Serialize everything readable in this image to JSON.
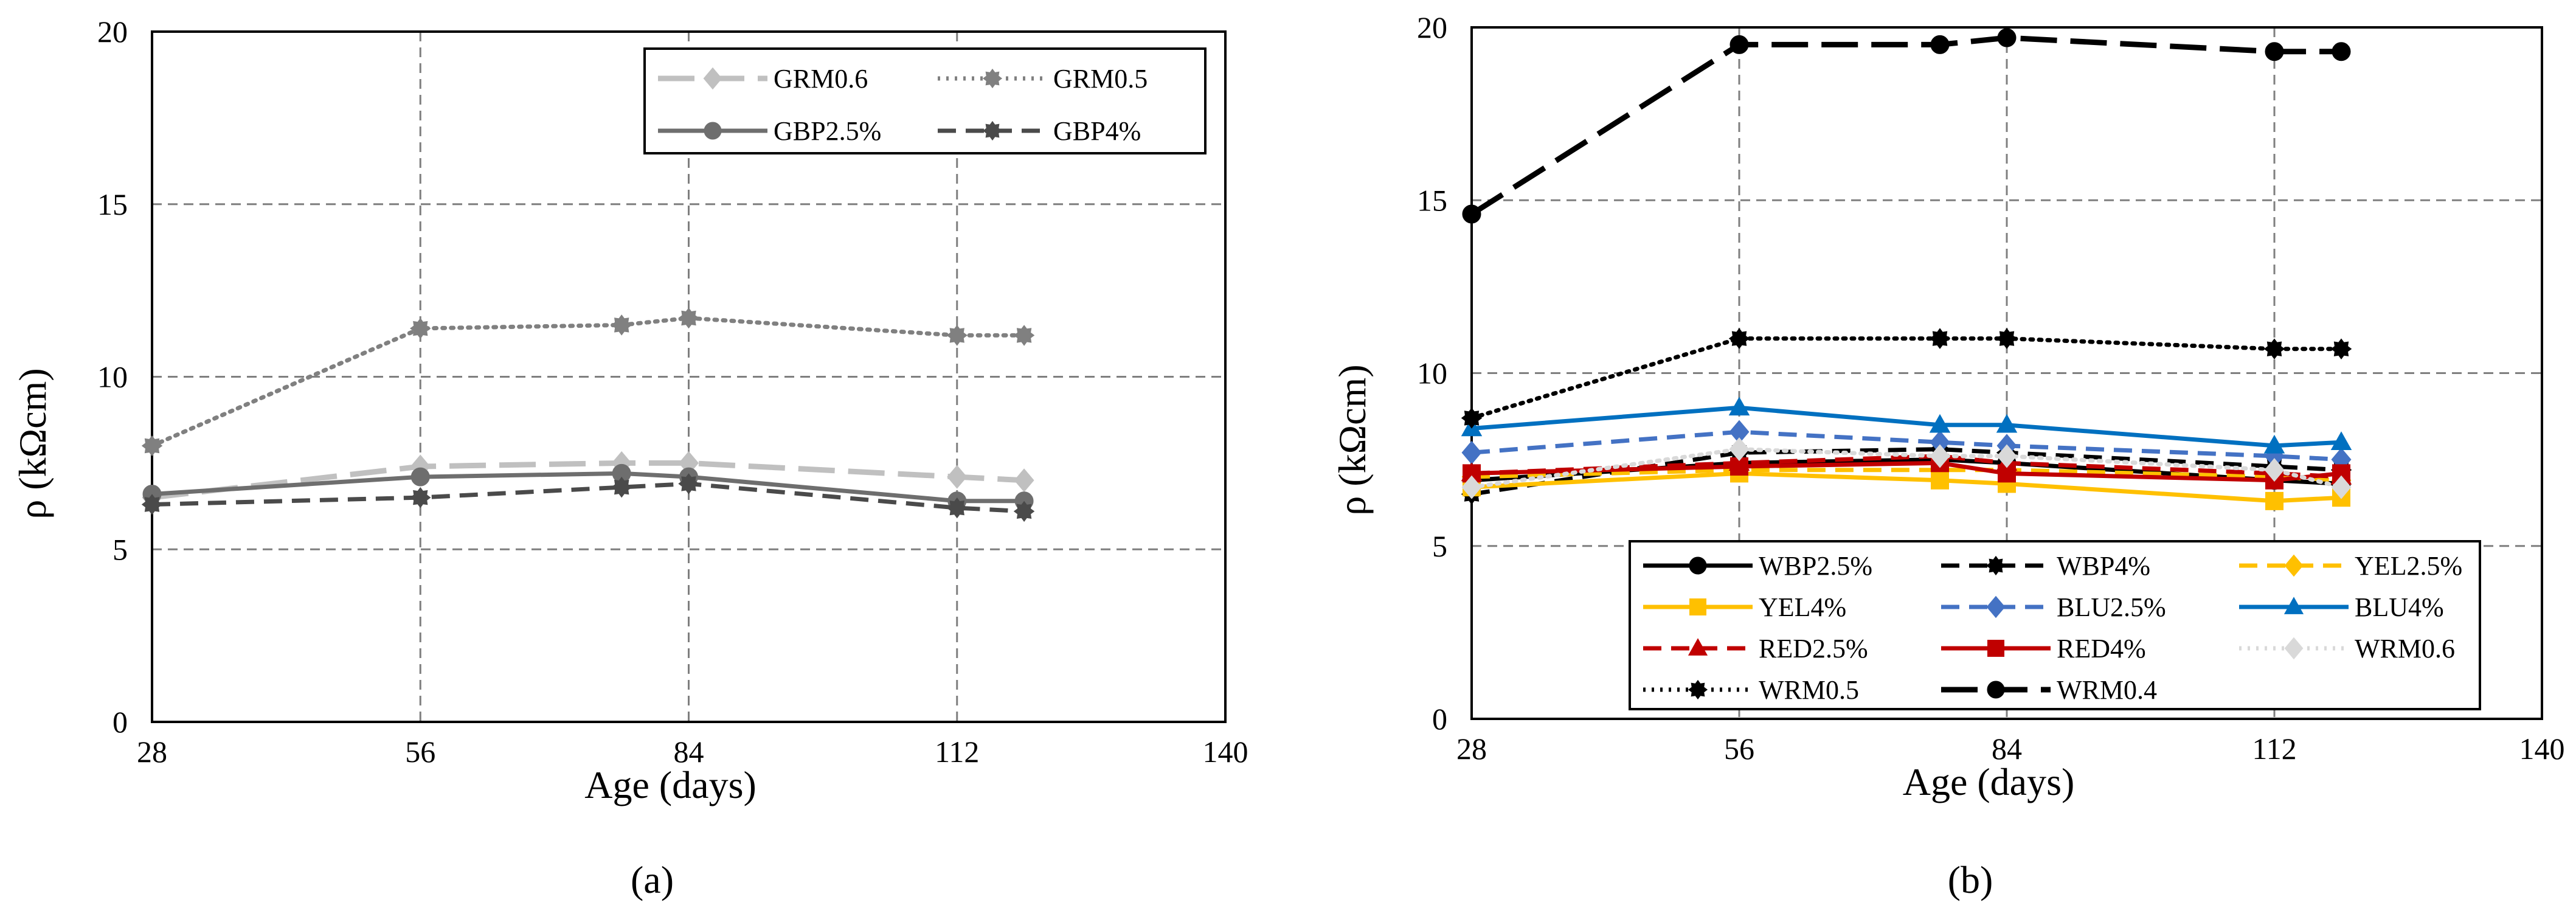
{
  "chart_data": [
    {
      "type": "line",
      "panel_label": "(a)",
      "title": "",
      "xlabel": "Age (days)",
      "ylabel": "ρ (kΩcm)",
      "xlim": [
        28,
        140
      ],
      "ylim": [
        0,
        20
      ],
      "xticks": [
        28,
        56,
        84,
        112,
        140
      ],
      "yticks": [
        0,
        5,
        10,
        15,
        20
      ],
      "grid": true,
      "legend_position": "top-right",
      "legend_columns": 2,
      "series": [
        {
          "name": "GRM0.6",
          "color": "#c0c0c0",
          "dash": "long",
          "marker": "diamond",
          "x": [
            28,
            56,
            77,
            84,
            112,
            119
          ],
          "y": [
            6.5,
            7.4,
            7.5,
            7.5,
            7.1,
            7.0
          ]
        },
        {
          "name": "GRM0.5",
          "color": "#808080",
          "dash": "dot",
          "marker": "gear",
          "x": [
            28,
            56,
            77,
            84,
            112,
            119
          ],
          "y": [
            8.0,
            11.4,
            11.5,
            11.7,
            11.2,
            11.2
          ]
        },
        {
          "name": "GBP2.5%",
          "color": "#6e6e6e",
          "dash": "solid",
          "marker": "circle",
          "x": [
            28,
            56,
            77,
            84,
            112,
            119
          ],
          "y": [
            6.6,
            7.1,
            7.2,
            7.1,
            6.4,
            6.4
          ]
        },
        {
          "name": "GBP4%",
          "color": "#4a4a4a",
          "dash": "dash",
          "marker": "gear",
          "x": [
            28,
            56,
            77,
            84,
            112,
            119
          ],
          "y": [
            6.3,
            6.5,
            6.8,
            6.9,
            6.2,
            6.1
          ]
        }
      ]
    },
    {
      "type": "line",
      "panel_label": "(b)",
      "title": "",
      "xlabel": "Age (days)",
      "ylabel": "ρ (kΩcm)",
      "xlim": [
        28,
        140
      ],
      "ylim": [
        0,
        20
      ],
      "xticks": [
        28,
        56,
        84,
        112,
        140
      ],
      "yticks": [
        0,
        5,
        10,
        15,
        20
      ],
      "grid": true,
      "legend_position": "bottom-right",
      "legend_columns": 3,
      "series": [
        {
          "name": "WBP2.5%",
          "color": "#000000",
          "dash": "solid",
          "marker": "circle",
          "x": [
            28,
            56,
            77,
            84,
            112,
            119
          ],
          "y": [
            6.9,
            7.4,
            7.5,
            7.4,
            6.9,
            6.8
          ]
        },
        {
          "name": "WBP4%",
          "color": "#000000",
          "dash": "dash",
          "marker": "gear",
          "x": [
            28,
            56,
            77,
            84,
            112,
            119
          ],
          "y": [
            6.5,
            7.7,
            7.8,
            7.7,
            7.3,
            7.2
          ]
        },
        {
          "name": "YEL2.5%",
          "color": "#ffc000",
          "dash": "dash",
          "marker": "diamond",
          "x": [
            28,
            56,
            77,
            84,
            112,
            119
          ],
          "y": [
            7.0,
            7.2,
            7.2,
            7.2,
            7.0,
            6.9
          ]
        },
        {
          "name": "YEL4%",
          "color": "#ffc000",
          "dash": "solid",
          "marker": "square",
          "x": [
            28,
            56,
            77,
            84,
            112,
            119
          ],
          "y": [
            6.7,
            7.1,
            6.9,
            6.8,
            6.3,
            6.4
          ]
        },
        {
          "name": "BLU2.5%",
          "color": "#4472c4",
          "dash": "dash",
          "marker": "diamond",
          "x": [
            28,
            56,
            77,
            84,
            112,
            119
          ],
          "y": [
            7.7,
            8.3,
            8.0,
            7.9,
            7.6,
            7.5
          ]
        },
        {
          "name": "BLU4%",
          "color": "#0070c0",
          "dash": "solid",
          "marker": "triangle",
          "x": [
            28,
            56,
            77,
            84,
            112,
            119
          ],
          "y": [
            8.4,
            9.0,
            8.5,
            8.5,
            7.9,
            8.0
          ]
        },
        {
          "name": "RED2.5%",
          "color": "#c00000",
          "dash": "dash",
          "marker": "triangle",
          "x": [
            28,
            56,
            77,
            84,
            112,
            119
          ],
          "y": [
            7.1,
            7.4,
            7.6,
            7.4,
            7.1,
            7.0
          ]
        },
        {
          "name": "RED4%",
          "color": "#c00000",
          "dash": "solid",
          "marker": "square",
          "x": [
            28,
            56,
            77,
            84,
            112,
            119
          ],
          "y": [
            7.1,
            7.3,
            7.4,
            7.1,
            6.9,
            7.1
          ]
        },
        {
          "name": "WRM0.6",
          "color": "#d9d9d9",
          "dash": "dot",
          "marker": "diamond",
          "x": [
            28,
            56,
            77,
            84,
            112,
            119
          ],
          "y": [
            6.7,
            7.8,
            7.6,
            7.6,
            7.2,
            6.7
          ]
        },
        {
          "name": "WRM0.5",
          "color": "#000000",
          "dash": "dot",
          "marker": "gear",
          "x": [
            28,
            56,
            77,
            84,
            112,
            119
          ],
          "y": [
            8.7,
            11.0,
            11.0,
            11.0,
            10.7,
            10.7
          ]
        },
        {
          "name": "WRM0.4",
          "color": "#000000",
          "dash": "long",
          "marker": "circle",
          "x": [
            28,
            56,
            77,
            84,
            112,
            119
          ],
          "y": [
            14.6,
            19.5,
            19.5,
            19.7,
            19.3,
            19.3
          ]
        }
      ]
    }
  ]
}
